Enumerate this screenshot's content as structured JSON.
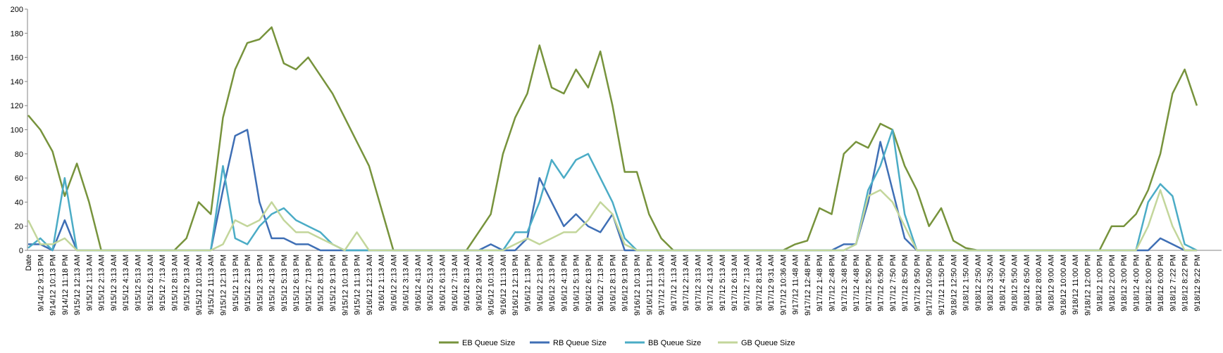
{
  "chart_data": {
    "type": "line",
    "categories": [
      "Date",
      "9/14/12 9:13 PM",
      "9/14/12 10:13 PM",
      "9/14/12 11:18 PM",
      "9/15/12 12:13 AM",
      "9/15/12 1:13 AM",
      "9/15/12 2:13 AM",
      "9/15/12 3:13 AM",
      "9/15/12 4:13 AM",
      "9/15/12 5:13 AM",
      "9/15/12 6:13 AM",
      "9/15/12 7:13 AM",
      "9/15/12 8:13 AM",
      "9/15/12 9:13 AM",
      "9/15/12 10:13 AM",
      "9/15/12 11:13 AM",
      "9/15/12 12:13 PM",
      "9/15/12 1:13 PM",
      "9/15/12 2:13 PM",
      "9/15/12 3:13 PM",
      "9/15/12 4:13 PM",
      "9/15/12 5:13 PM",
      "9/15/12 6:13 PM",
      "9/15/12 7:13 PM",
      "9/15/12 8:13 PM",
      "9/15/12 9:13 PM",
      "9/15/12 10:13 PM",
      "9/15/12 11:13 PM",
      "9/16/12 12:13 AM",
      "9/16/12 1:13 AM",
      "9/16/12 2:13 AM",
      "9/16/12 3:13 AM",
      "9/16/12 4:13 AM",
      "9/16/12 5:13 AM",
      "9/16/12 6:13 AM",
      "9/16/12 7:13 AM",
      "9/16/12 8:13 AM",
      "9/16/12 9:13 AM",
      "9/16/12 10:13 AM",
      "9/16/12 11:13 AM",
      "9/16/12 12:13 PM",
      "9/16/12 1:13 PM",
      "9/16/12 2:13 PM",
      "9/16/12 3:13 PM",
      "9/16/12 4:13 PM",
      "9/16/12 5:13 PM",
      "9/16/12 6:13 PM",
      "9/16/12 7:13 PM",
      "9/16/12 8:13 PM",
      "9/16/12 9:13 PM",
      "9/16/12 10:13 PM",
      "9/16/12 11:13 PM",
      "9/17/12 12:13 AM",
      "9/17/12 1:13 AM",
      "9/17/12 2:13 AM",
      "9/17/12 3:13 AM",
      "9/17/12 4:13 AM",
      "9/17/12 5:13 AM",
      "9/17/12 6:13 AM",
      "9/17/12 7:13 AM",
      "9/17/12 8:13 AM",
      "9/17/12 9:31 AM",
      "9/17/12 10:36 AM",
      "9/17/12 11:48 AM",
      "9/17/12 12:48 PM",
      "9/17/12 1:48 PM",
      "9/17/12 2:48 PM",
      "9/17/12 3:48 PM",
      "9/17/12 4:48 PM",
      "9/17/12 5:50 PM",
      "9/17/12 6:50 PM",
      "9/17/12 7:50 PM",
      "9/17/12 8:50 PM",
      "9/17/12 9:50 PM",
      "9/17/12 10:50 PM",
      "9/17/12 11:50 PM",
      "9/18/12 12:50 AM",
      "9/18/12 1:50 AM",
      "9/18/12 2:50 AM",
      "9/18/12 3:50 AM",
      "9/18/12 4:50 AM",
      "9/18/12 5:50 AM",
      "9/18/12 6:50 AM",
      "9/18/12 8:00 AM",
      "9/18/12 9:00 AM",
      "9/18/12 10:00 AM",
      "9/18/12 11:00 AM",
      "9/18/12 12:00 PM",
      "9/18/12 1:00 PM",
      "9/18/12 2:00 PM",
      "9/18/12 3:00 PM",
      "9/18/12 4:00 PM",
      "9/18/12 5:00 PM",
      "9/18/12 6:00 PM",
      "9/18/12 7:22 PM",
      "9/18/12 8:22 PM",
      "9/18/12 9:22 PM"
    ],
    "series": [
      {
        "name": "EB Queue Size",
        "color": "#77933c",
        "values": [
          112,
          100,
          82,
          45,
          72,
          40,
          0,
          0,
          0,
          0,
          0,
          0,
          0,
          10,
          40,
          30,
          110,
          150,
          172,
          175,
          185,
          155,
          150,
          160,
          145,
          130,
          110,
          90,
          70,
          35,
          0,
          0,
          0,
          0,
          0,
          0,
          0,
          15,
          30,
          80,
          110,
          130,
          170,
          135,
          130,
          150,
          135,
          165,
          120,
          65,
          65,
          30,
          10,
          0,
          0,
          0,
          0,
          0,
          0,
          0,
          0,
          0,
          0,
          5,
          8,
          35,
          30,
          80,
          90,
          85,
          105,
          100,
          70,
          50,
          20,
          35,
          8,
          2,
          0,
          0,
          0,
          0,
          0,
          0,
          0,
          0,
          0,
          0,
          0,
          20,
          20,
          30,
          50,
          80,
          130,
          150,
          120
        ]
      },
      {
        "name": "RB Queue Size",
        "color": "#3f6fb5",
        "values": [
          5,
          5,
          0,
          25,
          0,
          0,
          0,
          0,
          0,
          0,
          0,
          0,
          0,
          0,
          0,
          0,
          50,
          95,
          100,
          40,
          10,
          10,
          5,
          5,
          0,
          0,
          0,
          0,
          0,
          0,
          0,
          0,
          0,
          0,
          0,
          0,
          0,
          0,
          5,
          0,
          0,
          10,
          60,
          40,
          20,
          30,
          20,
          15,
          30,
          0,
          0,
          0,
          0,
          0,
          0,
          0,
          0,
          0,
          0,
          0,
          0,
          0,
          0,
          0,
          0,
          0,
          0,
          5,
          5,
          40,
          90,
          50,
          10,
          0,
          0,
          0,
          0,
          0,
          0,
          0,
          0,
          0,
          0,
          0,
          0,
          0,
          0,
          0,
          0,
          0,
          0,
          0,
          0,
          10,
          5,
          0,
          0
        ]
      },
      {
        "name": "BB Queue Size",
        "color": "#4bacc6",
        "values": [
          2,
          10,
          0,
          60,
          0,
          0,
          0,
          0,
          0,
          0,
          0,
          0,
          0,
          0,
          0,
          0,
          70,
          10,
          5,
          20,
          30,
          35,
          25,
          20,
          15,
          5,
          0,
          0,
          0,
          0,
          0,
          0,
          0,
          0,
          0,
          0,
          0,
          0,
          0,
          0,
          15,
          15,
          40,
          75,
          60,
          75,
          80,
          60,
          40,
          10,
          0,
          0,
          0,
          0,
          0,
          0,
          0,
          0,
          0,
          0,
          0,
          0,
          0,
          0,
          0,
          0,
          0,
          0,
          5,
          50,
          70,
          100,
          30,
          0,
          0,
          0,
          0,
          0,
          0,
          0,
          0,
          0,
          0,
          0,
          0,
          0,
          0,
          0,
          0,
          0,
          0,
          0,
          40,
          55,
          45,
          5,
          0
        ]
      },
      {
        "name": "GB Queue Size",
        "color": "#c3d69b",
        "values": [
          25,
          5,
          5,
          10,
          0,
          0,
          0,
          0,
          0,
          0,
          0,
          0,
          0,
          0,
          0,
          0,
          5,
          25,
          20,
          25,
          40,
          25,
          15,
          15,
          10,
          5,
          0,
          15,
          0,
          0,
          0,
          0,
          0,
          0,
          0,
          0,
          0,
          0,
          0,
          0,
          5,
          10,
          5,
          10,
          15,
          15,
          25,
          40,
          30,
          5,
          0,
          0,
          0,
          0,
          0,
          0,
          0,
          0,
          0,
          0,
          0,
          0,
          0,
          0,
          0,
          0,
          0,
          0,
          5,
          45,
          50,
          40,
          20,
          0,
          0,
          0,
          0,
          0,
          0,
          0,
          0,
          0,
          0,
          0,
          0,
          0,
          0,
          0,
          0,
          0,
          0,
          0,
          20,
          50,
          20,
          0,
          0
        ]
      }
    ],
    "ylim": [
      0,
      200
    ],
    "yticks": [
      0,
      20,
      40,
      60,
      80,
      100,
      120,
      140,
      160,
      180,
      200
    ],
    "grid": false,
    "legend": "bottom"
  }
}
